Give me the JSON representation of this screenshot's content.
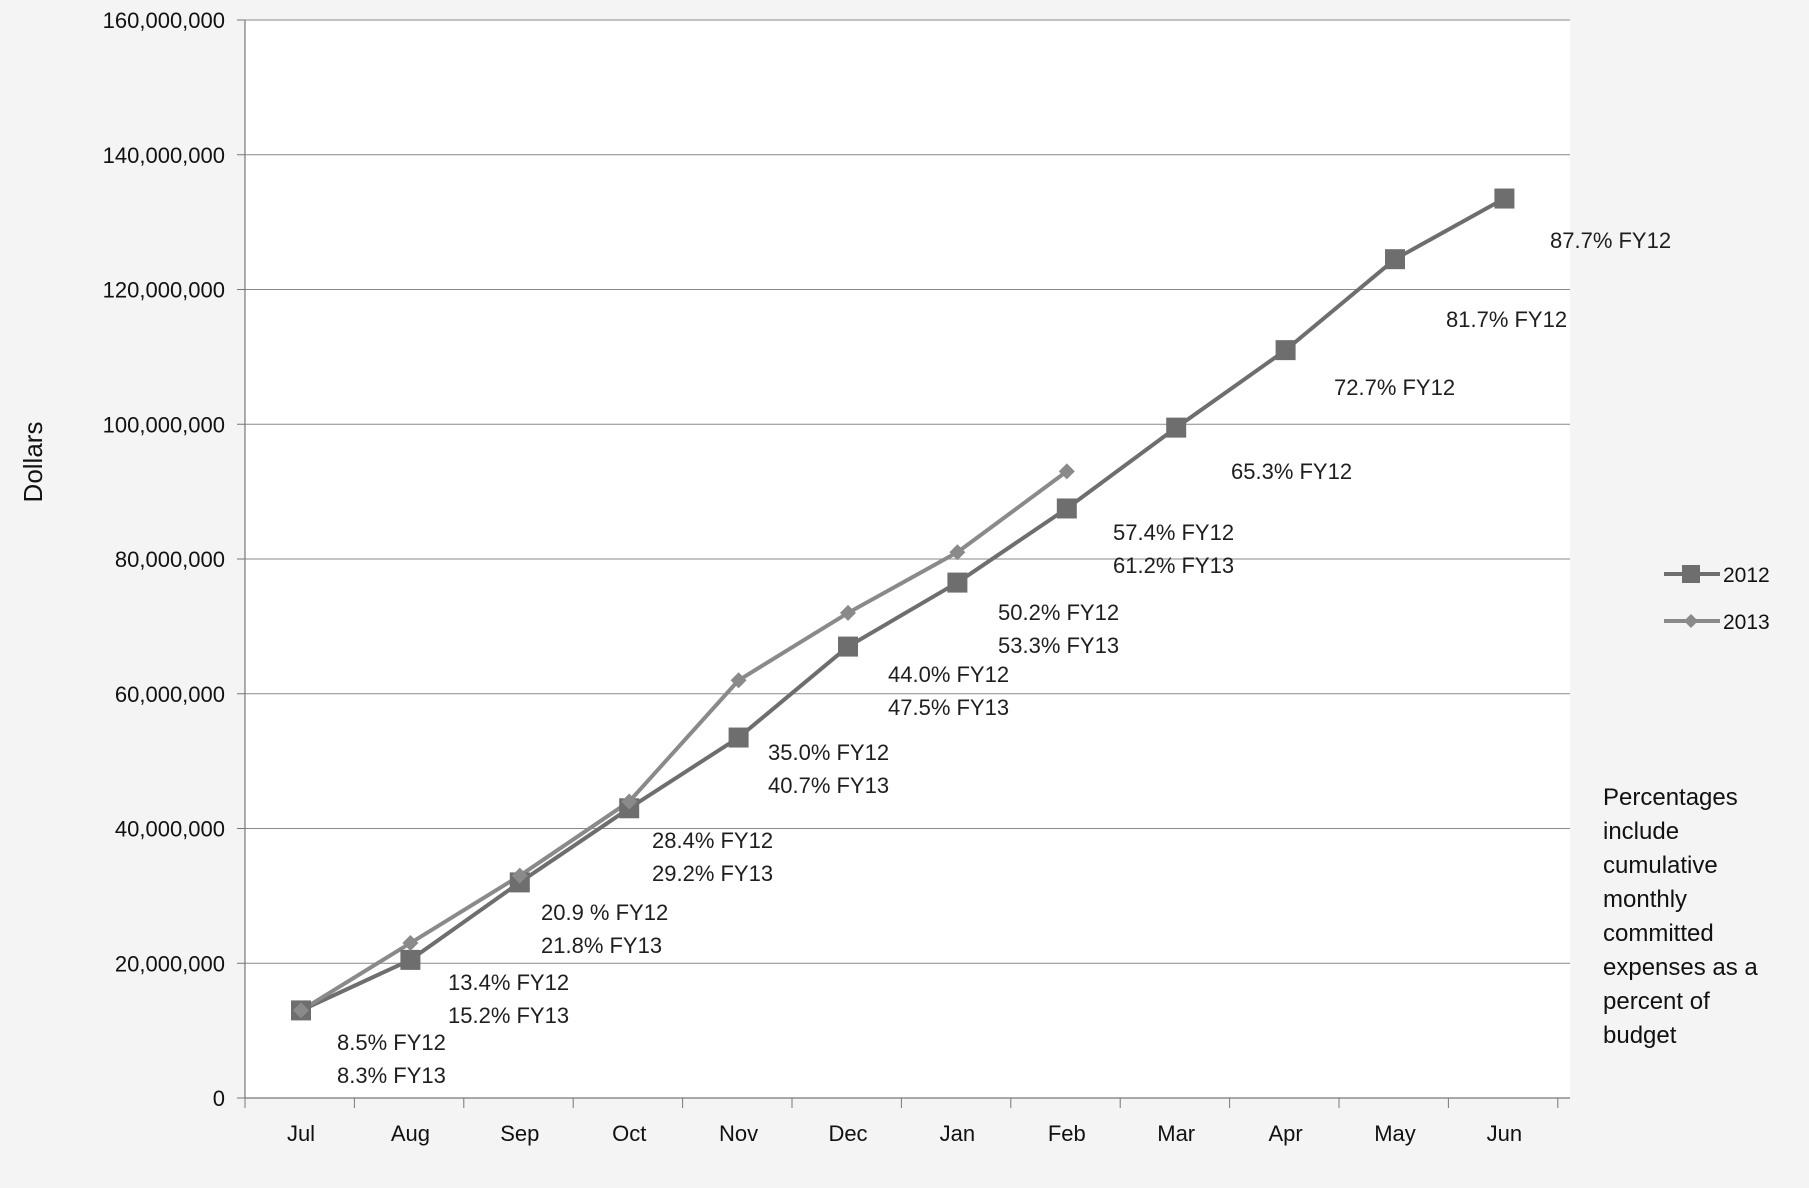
{
  "chart_data": {
    "type": "line",
    "ylabel": "Dollars",
    "xlabel": "",
    "ylim": [
      0,
      160000000
    ],
    "yticks": [
      0,
      20000000,
      40000000,
      60000000,
      80000000,
      100000000,
      120000000,
      140000000,
      160000000
    ],
    "ytick_labels": [
      "0",
      "20,000,000",
      "40,000,000",
      "60,000,000",
      "80,000,000",
      "100,000,000",
      "120,000,000",
      "140,000,000",
      "160,000,000"
    ],
    "categories": [
      "Jul",
      "Aug",
      "Sep",
      "Oct",
      "Nov",
      "Dec",
      "Jan",
      "Feb",
      "Mar",
      "Apr",
      "May",
      "Jun"
    ],
    "grid": "horizontal",
    "legend_position": "right",
    "series": [
      {
        "name": "2012",
        "marker": "square",
        "color": "#6e6e6e",
        "values": [
          13000000,
          20500000,
          32000000,
          43000000,
          53500000,
          67000000,
          76500000,
          87500000,
          99500000,
          111000000,
          124500000,
          133500000
        ]
      },
      {
        "name": "2013",
        "marker": "diamond",
        "color": "#8a8a8a",
        "values": [
          13000000,
          23000000,
          33000000,
          44000000,
          62000000,
          72000000,
          81000000,
          93000000,
          null,
          null,
          null,
          null
        ]
      }
    ],
    "annotations": [
      {
        "lines": [
          "8.5%  FY12",
          "8.3%  FY13"
        ]
      },
      {
        "lines": [
          "13.4% FY12",
          "15.2% FY13"
        ]
      },
      {
        "lines": [
          "20.9 %  FY12",
          "21.8%   FY13"
        ]
      },
      {
        "lines": [
          "28.4%  FY12",
          "29.2%  FY13"
        ]
      },
      {
        "lines": [
          "35.0%  FY12",
          "40.7%  FY13"
        ]
      },
      {
        "lines": [
          "44.0% FY12",
          "47.5% FY13"
        ]
      },
      {
        "lines": [
          "50.2%  FY12",
          "53.3%  FY13"
        ]
      },
      {
        "lines": [
          "57.4%  FY12",
          "61.2% FY13"
        ]
      },
      {
        "lines": [
          "65.3%  FY12"
        ]
      },
      {
        "lines": [
          "72.7% FY12"
        ]
      },
      {
        "lines": [
          "81.7%  FY12"
        ]
      },
      {
        "lines": [
          "87.7% FY12"
        ]
      }
    ],
    "note": [
      "Percentages",
      "include",
      "cumulative",
      "monthly",
      "committed",
      "expenses as a",
      "percent  of",
      "budget"
    ]
  }
}
